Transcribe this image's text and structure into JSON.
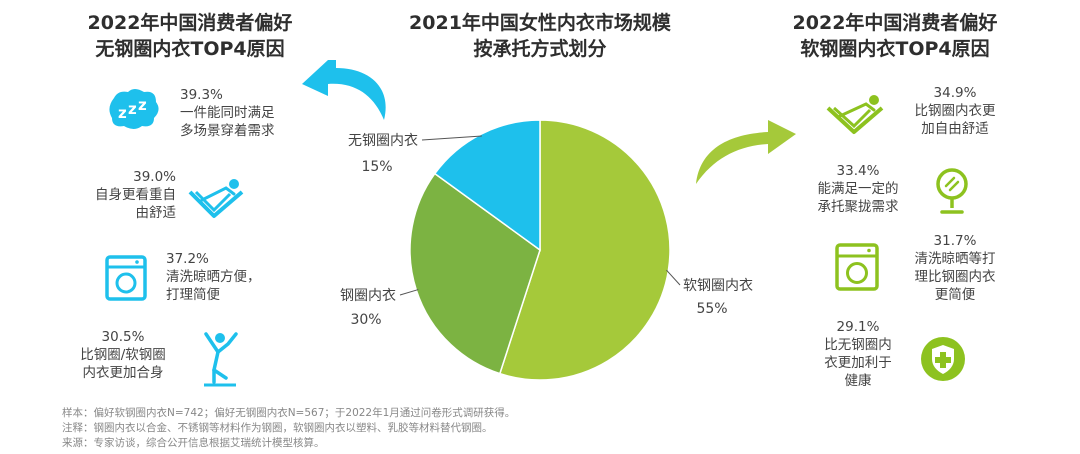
{
  "left_panel": {
    "title_line1": "2022年中国消费者偏好",
    "title_line2": "无钢圈内衣TOP4原因",
    "items": [
      {
        "pct": "39.3%",
        "text": "一件能同时满足\n多场景穿着需求",
        "icon": "zzz-sleep-icon"
      },
      {
        "pct": "39.0%",
        "text": "自身更看重自\n由舒适",
        "icon": "relaxing-person-icon"
      },
      {
        "pct": "37.2%",
        "text": "清洗晾晒方便，\n打理简便",
        "icon": "washing-machine-icon"
      },
      {
        "pct": "30.5%",
        "text": "比钢圈/软钢圈\n内衣更加合身",
        "icon": "stretching-person-icon"
      }
    ]
  },
  "center_panel": {
    "title_line1": "2021年中国女性内衣市场规模",
    "title_line2": "按承托方式划分"
  },
  "right_panel": {
    "title_line1": "2022年中国消费者偏好",
    "title_line2": "软钢圈内衣TOP4原因",
    "items": [
      {
        "pct": "34.9%",
        "text": "比钢圈内衣更\n加自由舒适",
        "icon": "relaxing-person-icon"
      },
      {
        "pct": "33.4%",
        "text": "能满足一定的\n承托聚拢需求",
        "icon": "mirror-icon"
      },
      {
        "pct": "31.7%",
        "text": "清洗晾晒等打\n理比钢圈内衣\n更简便",
        "icon": "washing-machine-icon"
      },
      {
        "pct": "29.1%",
        "text": "比无钢圈内\n衣更加利于\n健康",
        "icon": "health-shield-icon"
      }
    ]
  },
  "chart_data": {
    "type": "pie",
    "title": "2021年中国女性内衣市场规模 按承托方式划分",
    "slices": [
      {
        "label": "软钢圈内衣",
        "value": 55,
        "value_label": "55%",
        "color": "#a5c93a"
      },
      {
        "label": "钢圈内衣",
        "value": 30,
        "value_label": "30%",
        "color": "#7cb342"
      },
      {
        "label": "无钢圈内衣",
        "value": 15,
        "value_label": "15%",
        "color": "#1ec0ec"
      }
    ]
  },
  "colors": {
    "blue": "#1ec0ec",
    "green": "#a5c93a",
    "dark_green": "#7cb342"
  },
  "notes": [
    "样本：偏好软钢圈内衣N=742；偏好无钢圈内衣N=567；于2022年1月通过问卷形式调研获得。",
    "注释：钢圈内衣以合金、不锈钢等材料作为钢圈，软钢圈内衣以塑料、乳胶等材料替代钢圈。",
    "来源：专家访谈，综合公开信息根据艾瑞统计模型核算。"
  ]
}
